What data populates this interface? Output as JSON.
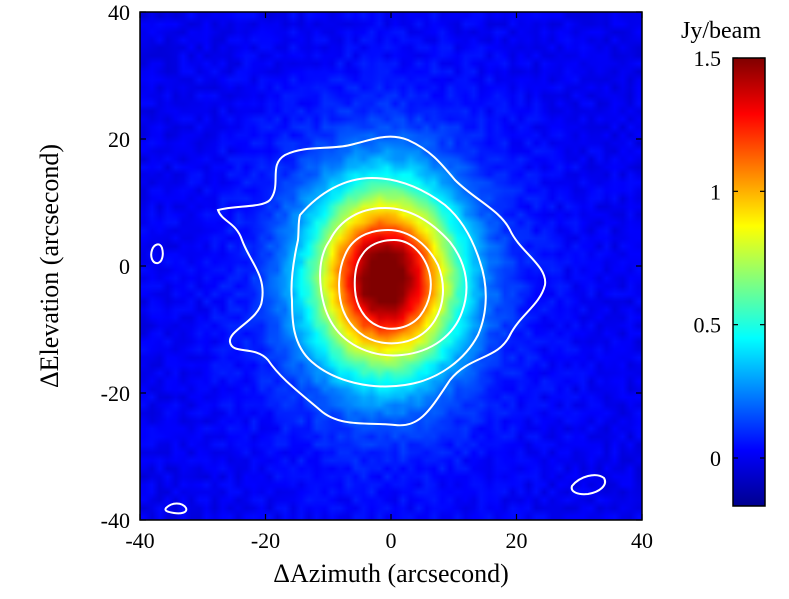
{
  "chart_data": {
    "type": "heatmap",
    "title": "",
    "xlabel": "ΔAzimuth (arcsecond)",
    "ylabel": "ΔElevation (arcsecond)",
    "xlim": [
      -40,
      40
    ],
    "ylim": [
      -40,
      40
    ],
    "x_ticks": [
      "-40",
      "-20",
      "0",
      "20",
      "40"
    ],
    "y_ticks": [
      "40",
      "20",
      "0",
      "-20",
      "-40"
    ],
    "x_tick_values": [
      -40,
      -20,
      0,
      20,
      40
    ],
    "y_tick_values": [
      40,
      20,
      0,
      -20,
      -40
    ],
    "colorbar": {
      "label": "Jy/beam",
      "range": [
        -0.18,
        1.5
      ],
      "ticks": [
        "1.5",
        "1",
        "0.5",
        "0"
      ],
      "tick_values": [
        1.5,
        1.0,
        0.5,
        0.0
      ],
      "colormap": "jet"
    },
    "source": {
      "peak_value": 1.45,
      "center": [
        -1,
        -2
      ],
      "sigma_x": 7.5,
      "sigma_y": 9.5,
      "background": 0.0
    },
    "contours": {
      "color": "#ffffff",
      "levels": [
        1.2,
        0.9,
        0.6,
        0.3,
        0.1
      ]
    },
    "grid": false
  }
}
